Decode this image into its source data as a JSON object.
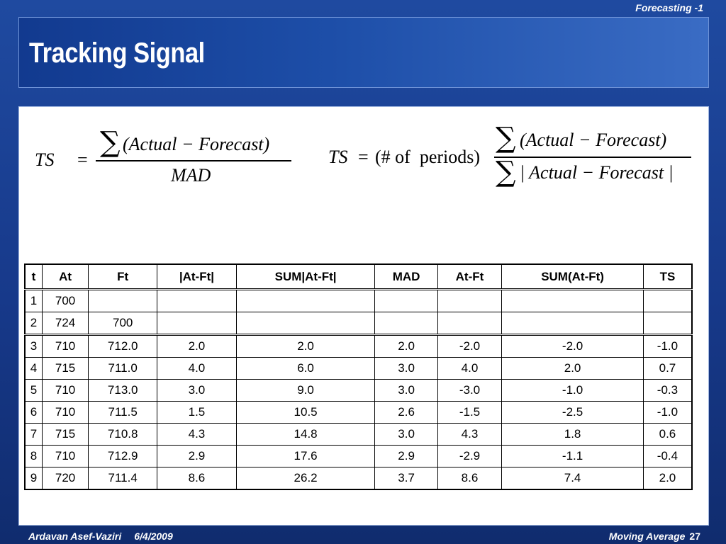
{
  "header": {
    "top_label": "Forecasting -1",
    "title": "Tracking Signal"
  },
  "formula_left": {
    "lhs": "TS",
    "eq": "=",
    "numerator_sigma": "∑",
    "numerator": "(Actual − Forecast)",
    "denominator": "MAD"
  },
  "formula_right": {
    "lhs": "TS",
    "eq": "=",
    "multiplier": "(# of  periods)",
    "numerator_sigma": "∑",
    "numerator": "(Actual − Forecast)",
    "denominator_sigma": "∑",
    "denominator": "| Actual − Forecast |"
  },
  "table": {
    "headers": [
      "t",
      "At",
      "Ft",
      "|At-Ft|",
      "SUM|At-Ft|",
      "MAD",
      "At-Ft",
      "SUM(At-Ft)",
      "TS"
    ],
    "rows": [
      [
        "1",
        "700",
        "",
        "",
        "",
        "",
        "",
        "",
        ""
      ],
      [
        "2",
        "724",
        "700",
        "",
        "",
        "",
        "",
        "",
        ""
      ],
      [
        "3",
        "710",
        "712.0",
        "2.0",
        "2.0",
        "2.0",
        "-2.0",
        "-2.0",
        "-1.0"
      ],
      [
        "4",
        "715",
        "711.0",
        "4.0",
        "6.0",
        "3.0",
        "4.0",
        "2.0",
        "0.7"
      ],
      [
        "5",
        "710",
        "713.0",
        "3.0",
        "9.0",
        "3.0",
        "-3.0",
        "-1.0",
        "-0.3"
      ],
      [
        "6",
        "710",
        "711.5",
        "1.5",
        "10.5",
        "2.6",
        "-1.5",
        "-2.5",
        "-1.0"
      ],
      [
        "7",
        "715",
        "710.8",
        "4.3",
        "14.8",
        "3.0",
        "4.3",
        "1.8",
        "0.6"
      ],
      [
        "8",
        "710",
        "712.9",
        "2.9",
        "17.6",
        "2.9",
        "-2.9",
        "-1.1",
        "-0.4"
      ],
      [
        "9",
        "720",
        "711.4",
        "8.6",
        "26.2",
        "3.7",
        "8.6",
        "7.4",
        "2.0"
      ]
    ]
  },
  "footer": {
    "author": "Ardavan Asef-Vaziri",
    "date": "6/4/2009",
    "section": "Moving Average",
    "page": "27"
  },
  "colors": {
    "background": "#17398a",
    "banner": "#1d4ea8",
    "panel": "#ffffff",
    "text_light": "#ffffff"
  }
}
